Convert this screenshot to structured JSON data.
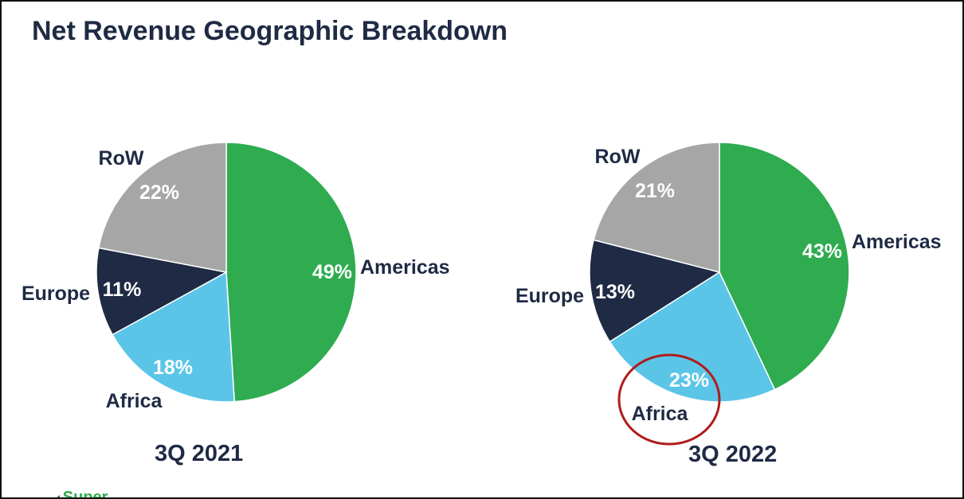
{
  "title": "Net Revenue Geographic Breakdown",
  "logo_text": "Super",
  "colors": {
    "Americas": "#2eac4f",
    "Africa": "#5bc5e8",
    "Europe": "#1f2a44",
    "RoW": "#a6a6a6",
    "label_dark": "#1f2a44",
    "highlight_circle": "#b01c1c"
  },
  "chart_data": [
    {
      "type": "pie",
      "title": "3Q 2021",
      "categories": [
        "Americas",
        "Africa",
        "Europe",
        "RoW"
      ],
      "values": [
        49,
        18,
        11,
        22
      ],
      "value_labels": [
        "49%",
        "18%",
        "11%",
        "22%"
      ]
    },
    {
      "type": "pie",
      "title": "3Q 2022",
      "categories": [
        "Americas",
        "Africa",
        "Europe",
        "RoW"
      ],
      "values": [
        43,
        23,
        13,
        21
      ],
      "value_labels": [
        "43%",
        "23%",
        "13%",
        "21%"
      ],
      "highlighted_category": "Africa"
    }
  ]
}
